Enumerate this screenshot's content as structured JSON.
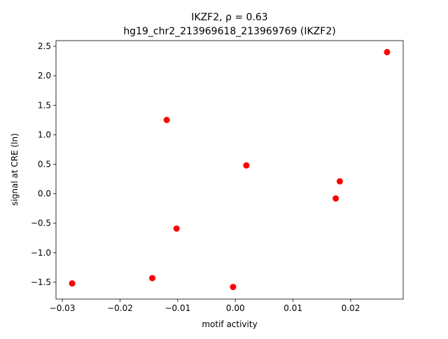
{
  "chart_data": {
    "type": "scatter",
    "title": "IKZF2, ρ = 0.63",
    "subtitle": "hg19_chr2_213969618_213969769 (IKZF2)",
    "x_label": "motif activity",
    "y_label": "signal at CRE (ln)",
    "color": "#ff0000",
    "x": [
      0.0263,
      -0.0119,
      0.0019,
      0.0181,
      0.0174,
      -0.0102,
      -0.0283,
      -0.0144,
      -0.0004
    ],
    "values": [
      2.4,
      1.25,
      0.48,
      0.21,
      -0.08,
      -0.59,
      -1.52,
      -1.43,
      -1.58
    ],
    "xlim": [
      -0.0311,
      0.0291
    ],
    "ylim": [
      -1.785,
      2.595
    ],
    "xticks": [
      {
        "value": -0.03,
        "label": "−0.03"
      },
      {
        "value": -0.02,
        "label": "−0.02"
      },
      {
        "value": -0.01,
        "label": "−0.01"
      },
      {
        "value": 0,
        "label": "0.00"
      },
      {
        "value": 0.01,
        "label": "0.01"
      },
      {
        "value": 0.02,
        "label": "0.02"
      }
    ],
    "yticks": [
      {
        "value": -1.5,
        "label": "−1.5"
      },
      {
        "value": -1,
        "label": "−1.0"
      },
      {
        "value": -0.5,
        "label": "−0.5"
      },
      {
        "value": 0,
        "label": "0.0"
      },
      0.5,
      {
        "value": 1,
        "label": "1.0"
      },
      1.5,
      {
        "value": 2,
        "label": "2.0"
      },
      2.5
    ],
    "grid": false
  }
}
